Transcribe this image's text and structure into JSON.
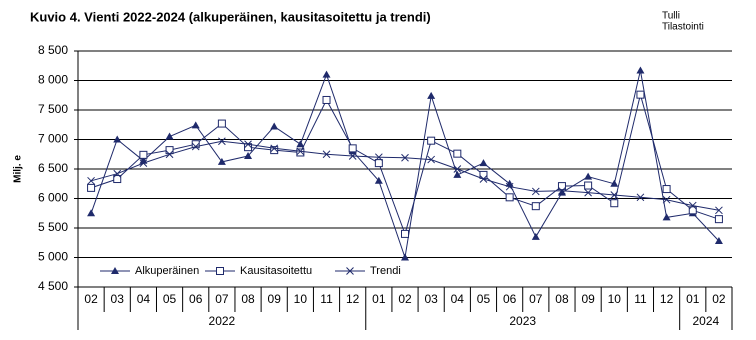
{
  "chart_data": {
    "type": "line",
    "title": "Kuvio 4. Vienti 2022-2024  (alkuperäinen, kausitasoitettu  ja trendi)",
    "source": [
      "Tulli",
      "Tilastointi"
    ],
    "y_label": "Milj. e",
    "categories": [
      {
        "month": "02",
        "year": "2022"
      },
      {
        "month": "03",
        "year": "2022"
      },
      {
        "month": "04",
        "year": "2022"
      },
      {
        "month": "05",
        "year": "2022"
      },
      {
        "month": "06",
        "year": "2022"
      },
      {
        "month": "07",
        "year": "2022"
      },
      {
        "month": "08",
        "year": "2022"
      },
      {
        "month": "09",
        "year": "2022"
      },
      {
        "month": "10",
        "year": "2022"
      },
      {
        "month": "11",
        "year": "2022"
      },
      {
        "month": "12",
        "year": "2022"
      },
      {
        "month": "01",
        "year": "2023"
      },
      {
        "month": "02",
        "year": "2023"
      },
      {
        "month": "03",
        "year": "2023"
      },
      {
        "month": "04",
        "year": "2023"
      },
      {
        "month": "05",
        "year": "2023"
      },
      {
        "month": "06",
        "year": "2023"
      },
      {
        "month": "07",
        "year": "2023"
      },
      {
        "month": "08",
        "year": "2023"
      },
      {
        "month": "09",
        "year": "2023"
      },
      {
        "month": "10",
        "year": "2023"
      },
      {
        "month": "11",
        "year": "2023"
      },
      {
        "month": "12",
        "year": "2023"
      },
      {
        "month": "01",
        "year": "2024"
      },
      {
        "month": "02",
        "year": "2024"
      }
    ],
    "series": [
      {
        "name": "Alkuperäinen",
        "color": "#1f2a6b",
        "marker": "triangle",
        "values": [
          5750,
          7000,
          6640,
          7050,
          7240,
          6620,
          6720,
          7220,
          6920,
          8100,
          6800,
          6300,
          5000,
          7740,
          6400,
          6600,
          6250,
          5350,
          6100,
          6370,
          6250,
          8170,
          5680,
          5750,
          5280
        ]
      },
      {
        "name": "Kausitasoitettu",
        "color": "#1f2a6b",
        "marker": "square",
        "values": [
          6180,
          6330,
          6740,
          6820,
          6920,
          7270,
          6870,
          6820,
          6780,
          7670,
          6850,
          6600,
          5400,
          6980,
          6760,
          6400,
          6020,
          5870,
          6210,
          6220,
          5920,
          7760,
          6160,
          5800,
          5650
        ]
      },
      {
        "name": "Trendi",
        "color": "#1f2a6b",
        "marker": "cross",
        "values": [
          6300,
          6420,
          6600,
          6750,
          6880,
          6970,
          6920,
          6850,
          6800,
          6750,
          6720,
          6700,
          6690,
          6660,
          6500,
          6330,
          6200,
          6120,
          6130,
          6100,
          6060,
          6020,
          5980,
          5880,
          5800
        ]
      }
    ],
    "ylim": [
      4500,
      8500
    ],
    "yticks": [
      {
        "value": 4500,
        "label": "4 500"
      },
      {
        "value": 5000,
        "label": "5 000"
      },
      {
        "value": 5500,
        "label": "5 500"
      },
      {
        "value": 6000,
        "label": "6 000"
      },
      {
        "value": 6500,
        "label": "6 500"
      },
      {
        "value": 7000,
        "label": "7 000"
      },
      {
        "value": 7500,
        "label": "7 500"
      },
      {
        "value": 8000,
        "label": "8 000"
      },
      {
        "value": 8500,
        "label": "8 500"
      }
    ],
    "grid": true
  }
}
